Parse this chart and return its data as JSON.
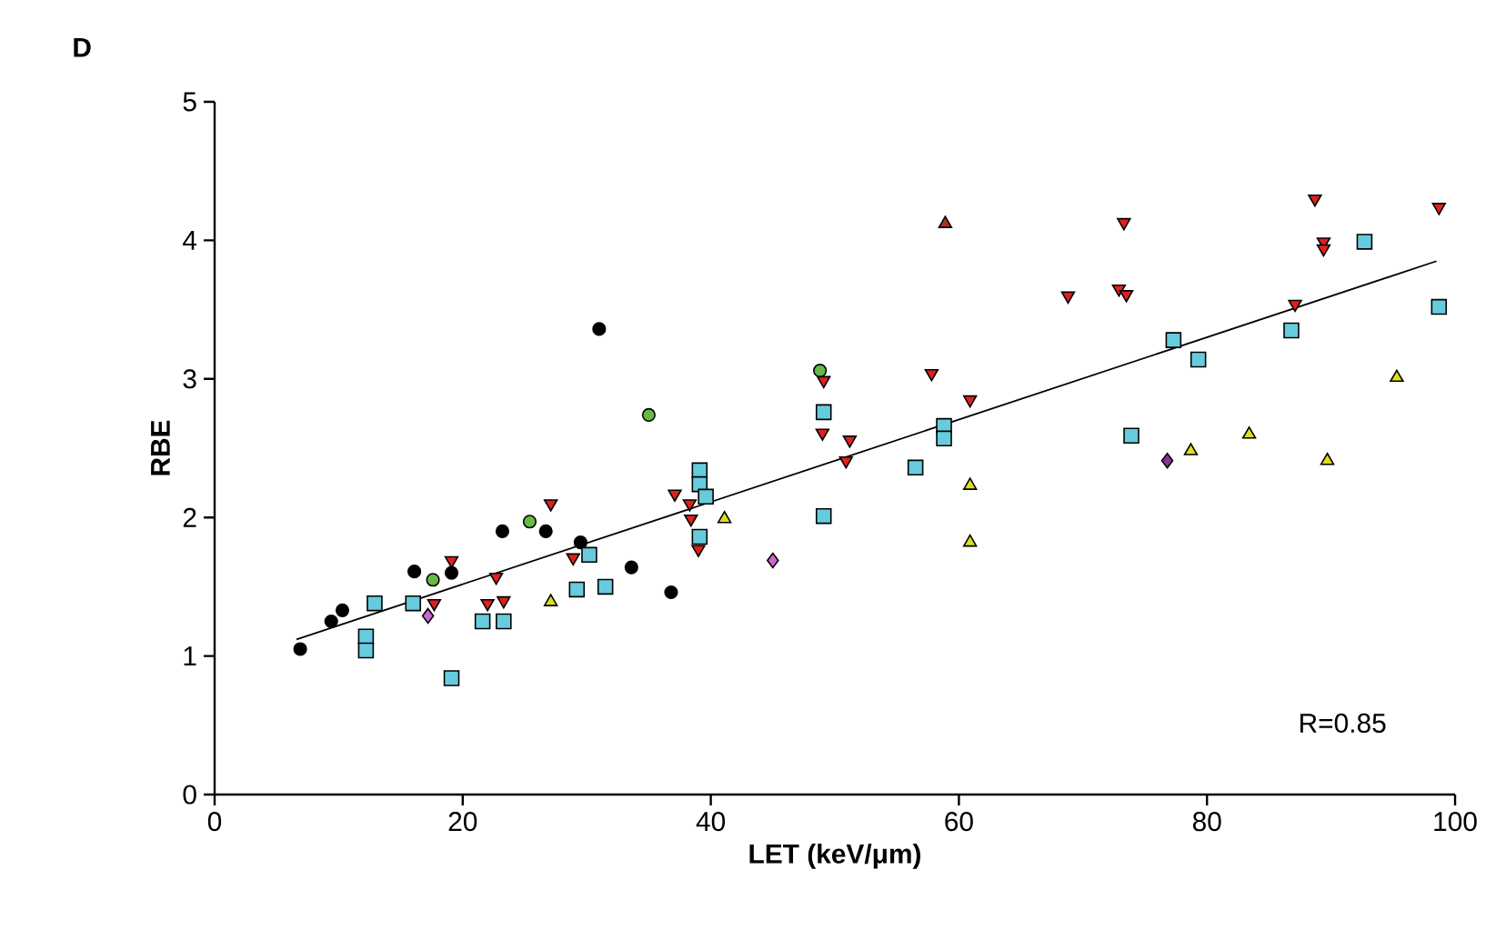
{
  "chart_data": {
    "type": "scatter",
    "title": "D",
    "xlabel": "LET (keV/μm)",
    "ylabel": "RBE",
    "xlim": [
      0,
      100
    ],
    "ylim": [
      0,
      5
    ],
    "xticks": [
      0,
      20,
      40,
      60,
      80,
      100
    ],
    "yticks": [
      0,
      1,
      2,
      3,
      4,
      5
    ],
    "grid": false,
    "annotations": [
      "R=0.85"
    ],
    "series": [
      {
        "color": "#000000",
        "marker": "circle",
        "x": [
          6.9,
          9.4,
          10.3,
          16.1,
          19.1,
          23.2,
          26.7,
          29.5,
          31.0,
          33.6,
          36.8
        ],
        "values": [
          1.05,
          1.25,
          1.33,
          1.61,
          1.6,
          1.9,
          1.9,
          1.82,
          3.36,
          1.64,
          1.46
        ]
      },
      {
        "color": "#66bb44",
        "marker": "circle",
        "x": [
          17.6,
          25.4,
          35.0,
          48.8
        ],
        "values": [
          1.55,
          1.97,
          2.74,
          3.06
        ]
      },
      {
        "color": "#66ccdd",
        "marker": "square",
        "x": [
          12.9,
          16.0,
          12.2,
          12.2,
          19.1,
          21.6,
          23.3,
          29.2,
          31.5,
          30.2,
          39.1,
          39.1,
          39.1,
          39.6,
          49.1,
          49.1,
          56.5,
          58.8,
          58.8,
          92.7,
          77.3,
          79.3,
          86.8,
          98.7,
          73.9
        ],
        "values": [
          1.38,
          1.38,
          1.14,
          1.04,
          0.84,
          1.25,
          1.25,
          1.48,
          1.5,
          1.73,
          2.34,
          2.24,
          1.86,
          2.15,
          2.76,
          2.01,
          2.36,
          2.66,
          2.57,
          3.99,
          3.28,
          3.14,
          3.35,
          3.52,
          2.59
        ]
      },
      {
        "color": "#e02020",
        "marker": "triangle-down",
        "x": [
          27.1,
          19.1,
          22.7,
          22.0,
          23.3,
          17.7,
          28.9,
          37.1,
          38.3,
          38.4,
          39.0,
          49.1,
          49.0,
          51.2,
          50.9,
          57.8,
          60.9,
          68.8,
          73.3,
          72.9,
          73.5,
          88.7,
          89.4,
          89.4,
          98.7,
          87.1
        ],
        "values": [
          2.1,
          1.69,
          1.57,
          1.38,
          1.4,
          1.38,
          1.71,
          2.17,
          2.1,
          1.99,
          1.77,
          2.99,
          2.61,
          2.56,
          2.41,
          3.04,
          2.85,
          3.6,
          4.13,
          3.65,
          3.61,
          4.3,
          3.99,
          3.94,
          4.24,
          3.54
        ]
      },
      {
        "color": "#b03020",
        "marker": "triangle",
        "x": [
          58.9
        ],
        "values": [
          4.12
        ]
      },
      {
        "color": "#dddd22",
        "marker": "triangle",
        "x": [
          27.1,
          41.1,
          60.9,
          60.9,
          78.7,
          83.4,
          89.7,
          95.3
        ],
        "values": [
          1.39,
          1.99,
          2.23,
          1.82,
          2.48,
          2.6,
          2.41,
          3.01
        ]
      },
      {
        "color": "#cc66cc",
        "marker": "diamond",
        "x": [
          17.2,
          45.0
        ],
        "values": [
          1.29,
          1.69
        ]
      },
      {
        "color": "#883399",
        "marker": "diamond",
        "x": [
          76.8
        ],
        "values": [
          2.41
        ]
      },
      {
        "type": "line",
        "color": "#000000",
        "x": [
          6.6,
          98.5
        ],
        "values": [
          1.12,
          3.85
        ]
      }
    ]
  }
}
